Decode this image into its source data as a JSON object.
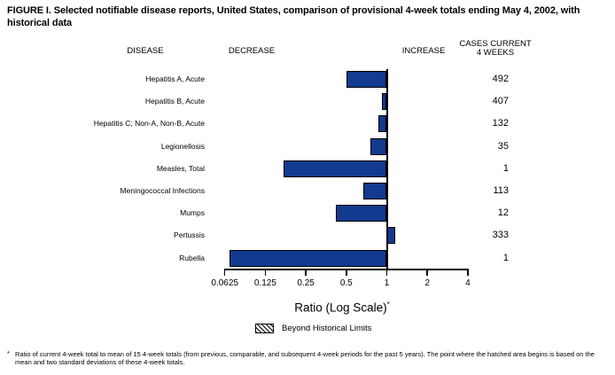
{
  "figure": {
    "title": "FIGURE I. Selected notifiable disease reports, United States, comparison of provisional 4-week totals ending May 4, 2002, with historical data"
  },
  "columns": {
    "disease": "DISEASE",
    "decrease": "DECREASE",
    "increase": "INCREASE",
    "cases_line1": "CASES CURRENT",
    "cases_line2": "4 WEEKS"
  },
  "chart_data": {
    "type": "bar",
    "orientation": "horizontal",
    "x_scale": "log2",
    "x_axis": {
      "label": "Ratio (Log Scale)",
      "label_suffix": "*",
      "ticks": [
        0.0625,
        0.125,
        0.25,
        0.5,
        1,
        2,
        4
      ],
      "tick_labels": [
        "0.0625",
        "0.125",
        "0.25",
        "0.5",
        "1",
        "2",
        "4"
      ],
      "baseline": 1,
      "xlim": [
        0.0625,
        4
      ]
    },
    "bar_color": "#123A8E",
    "bar_border_color": "#000000",
    "rows": [
      {
        "disease": "Hepatitis A, Acute",
        "ratio": 0.5,
        "cases": "492"
      },
      {
        "disease": "Hepatitis B, Acute",
        "ratio": 0.92,
        "cases": "407"
      },
      {
        "disease": "Hepatitis C; Non-A, Non-B, Acute",
        "ratio": 0.87,
        "cases": "132"
      },
      {
        "disease": "Legionellosis",
        "ratio": 0.76,
        "cases": "35"
      },
      {
        "disease": "Measles, Total",
        "ratio": 0.17,
        "cases": "1"
      },
      {
        "disease": "Meningococcal Infections",
        "ratio": 0.67,
        "cases": "113"
      },
      {
        "disease": "Mumps",
        "ratio": 0.42,
        "cases": "12"
      },
      {
        "disease": "Pertussis",
        "ratio": 1.16,
        "cases": "333"
      },
      {
        "disease": "Rubella",
        "ratio": 0.068,
        "cases": "1"
      }
    ],
    "legend": {
      "label": "Beyond Historical Limits",
      "swatch_style": "hatched"
    }
  },
  "footnote": {
    "marker": "*",
    "text": "Ratio of current 4-week total to mean of 15 4-week totals (from previous, comparable, and subsequent 4-week periods for the past 5 years). The point where the hatched area begins is based on the mean and two standard deviations of these 4-week totals."
  }
}
